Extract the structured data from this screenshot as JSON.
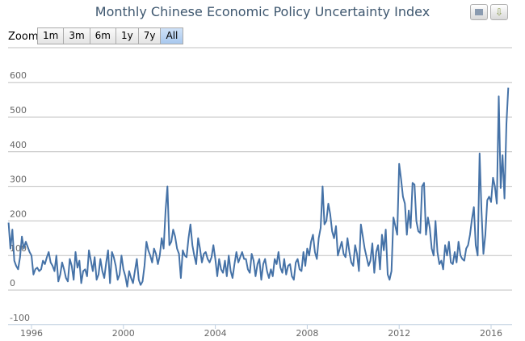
{
  "title": "Monthly Chinese Economic Policy Uncertainty Index",
  "zoom": {
    "label": "Zoom",
    "buttons": [
      "1m",
      "3m",
      "6m",
      "1y",
      "7y",
      "All"
    ],
    "selected": "All"
  },
  "export_icons": [
    "print-icon",
    "download-icon"
  ],
  "colors": {
    "series": "#4572a7",
    "grid": "#c0c0c0",
    "axis": "#c0d0e0"
  },
  "chart_data": {
    "type": "line",
    "title": "Monthly Chinese Economic Policy Uncertainty Index",
    "x_start": "1995-01",
    "x_interval": "month",
    "ylim": [
      -100,
      700
    ],
    "yticks": [
      "-100",
      "0",
      "100",
      "200",
      "300",
      "400",
      "500",
      "600"
    ],
    "xticks": [
      "1996",
      "2000",
      "2004",
      "2008",
      "2012",
      "2016"
    ],
    "grid": true,
    "values": [
      195,
      120,
      175,
      85,
      70,
      60,
      95,
      155,
      120,
      140,
      125,
      110,
      100,
      45,
      60,
      65,
      55,
      60,
      85,
      75,
      95,
      110,
      80,
      70,
      55,
      100,
      25,
      45,
      80,
      60,
      35,
      25,
      90,
      70,
      30,
      110,
      65,
      85,
      20,
      55,
      60,
      40,
      115,
      85,
      55,
      95,
      30,
      45,
      90,
      55,
      35,
      80,
      115,
      20,
      110,
      95,
      70,
      30,
      45,
      100,
      60,
      40,
      10,
      55,
      35,
      20,
      55,
      90,
      30,
      15,
      25,
      70,
      140,
      115,
      100,
      80,
      120,
      105,
      75,
      100,
      150,
      120,
      230,
      300,
      130,
      140,
      175,
      155,
      120,
      105,
      35,
      115,
      100,
      95,
      150,
      190,
      130,
      100,
      75,
      150,
      120,
      80,
      105,
      110,
      90,
      80,
      95,
      130,
      90,
      40,
      90,
      60,
      50,
      85,
      40,
      100,
      55,
      35,
      75,
      110,
      80,
      95,
      110,
      90,
      90,
      60,
      50,
      105,
      85,
      40,
      75,
      90,
      30,
      75,
      90,
      55,
      35,
      60,
      40,
      90,
      75,
      110,
      65,
      50,
      90,
      45,
      70,
      75,
      40,
      30,
      80,
      90,
      60,
      55,
      110,
      70,
      120,
      100,
      140,
      160,
      110,
      90,
      150,
      180,
      300,
      190,
      200,
      250,
      220,
      170,
      150,
      185,
      100,
      120,
      140,
      105,
      95,
      150,
      110,
      80,
      70,
      130,
      105,
      55,
      190,
      155,
      120,
      95,
      70,
      85,
      135,
      50,
      110,
      130,
      60,
      160,
      115,
      175,
      45,
      30,
      55,
      210,
      185,
      160,
      365,
      320,
      270,
      250,
      160,
      230,
      180,
      310,
      305,
      200,
      170,
      165,
      300,
      310,
      160,
      210,
      180,
      120,
      100,
      200,
      110,
      75,
      85,
      60,
      130,
      100,
      140,
      80,
      75,
      110,
      80,
      140,
      100,
      90,
      85,
      120,
      130,
      160,
      205,
      240,
      130,
      100,
      395,
      230,
      105,
      160,
      260,
      270,
      255,
      325,
      300,
      250,
      560,
      295,
      390,
      265,
      480,
      585
    ]
  }
}
